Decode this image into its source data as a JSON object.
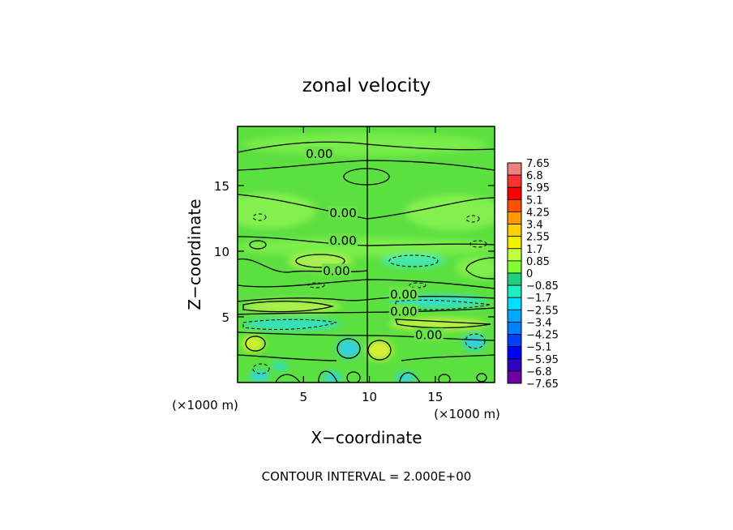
{
  "chart_data": {
    "type": "heatmap",
    "title": "zonal velocity",
    "xlabel": "X−coordinate",
    "ylabel": "Z−coordinate",
    "xunit_left": "(×1000 m)",
    "xunit_right": "(×1000 m)",
    "xlim": [
      0,
      19.5
    ],
    "ylim": [
      0,
      19.5
    ],
    "xticks": [
      5,
      10,
      15
    ],
    "yticks": [
      5,
      10,
      15
    ],
    "x_tick_labels": [
      "5",
      "10",
      "15"
    ],
    "y_tick_labels": [
      "5",
      "10",
      "15"
    ],
    "colorbar_labels": [
      "7.65",
      "6.8",
      "5.95",
      "5.1",
      "4.25",
      "3.4",
      "2.55",
      "1.7",
      "0.85",
      "0",
      "−0.85",
      "−1.7",
      "−2.55",
      "−3.4",
      "−4.25",
      "−5.1",
      "−5.95",
      "−6.8",
      "−7.65"
    ],
    "colorbar_colors": [
      "#f08080",
      "#ff3030",
      "#ff0000",
      "#ff5000",
      "#ff9a00",
      "#ffd000",
      "#f0f000",
      "#c0ff40",
      "#80ff30",
      "#40e040",
      "#20d080",
      "#20f0c0",
      "#00e0ff",
      "#00a8ff",
      "#0080ff",
      "#0040ff",
      "#0000ff",
      "#3000c0",
      "#7000a0"
    ],
    "contour_labels": [
      {
        "text": "0.00",
        "x": 6.2,
        "y": 17.4
      },
      {
        "text": "0.00",
        "x": 8.0,
        "y": 12.9
      },
      {
        "text": "0.00",
        "x": 8.0,
        "y": 10.8
      },
      {
        "text": "0.00",
        "x": 7.5,
        "y": 8.5
      },
      {
        "text": "0.00",
        "x": 12.6,
        "y": 6.7
      },
      {
        "text": "0.00",
        "x": 12.6,
        "y": 5.4
      },
      {
        "text": "0.00",
        "x": 14.5,
        "y": 3.6
      }
    ],
    "footnote": "CONTOUR INTERVAL = 2.000E+00"
  }
}
